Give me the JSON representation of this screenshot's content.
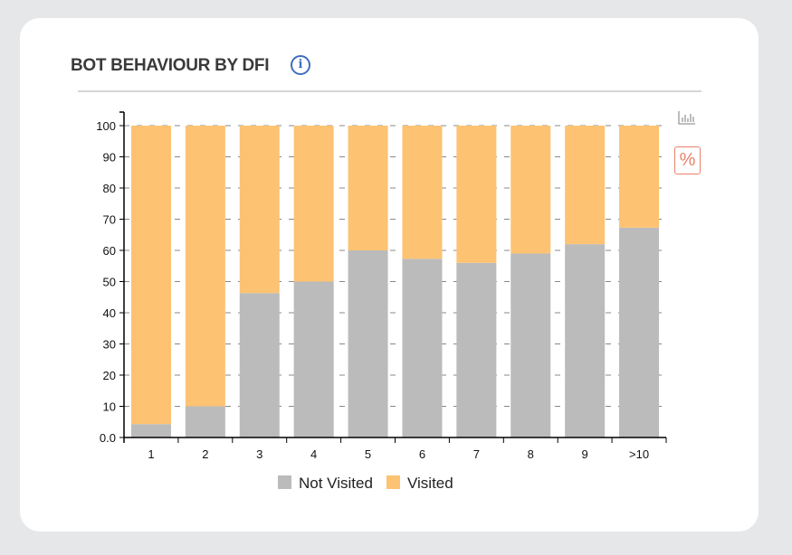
{
  "title": "BOT BEHAVIOUR BY DFI",
  "icons": {
    "info": "info-icon",
    "bar": "bar-chart-icon",
    "percent": "percent-icon"
  },
  "percent_label": "%",
  "info_glyph": "i",
  "chart_data": {
    "type": "bar",
    "stacked": true,
    "categories": [
      "1",
      "2",
      "3",
      "4",
      "5",
      "6",
      "7",
      "8",
      "9",
      ">10"
    ],
    "series": [
      {
        "name": "Not Visited",
        "color": "#bbbbbb",
        "values": [
          4.3,
          10,
          46.3,
          50,
          60,
          57.3,
          56,
          59,
          62,
          67.3
        ]
      },
      {
        "name": "Visited",
        "color": "#fdc272",
        "values": [
          95.7,
          90,
          53.7,
          50,
          40,
          42.7,
          44,
          41,
          38,
          32.7
        ]
      }
    ],
    "yticks": [
      "0.0",
      "10",
      "20",
      "30",
      "40",
      "50",
      "60",
      "70",
      "80",
      "90",
      "100"
    ],
    "ylim": [
      0,
      100
    ],
    "grid": true,
    "legend": "bottom",
    "xlabel": "",
    "ylabel": ""
  }
}
